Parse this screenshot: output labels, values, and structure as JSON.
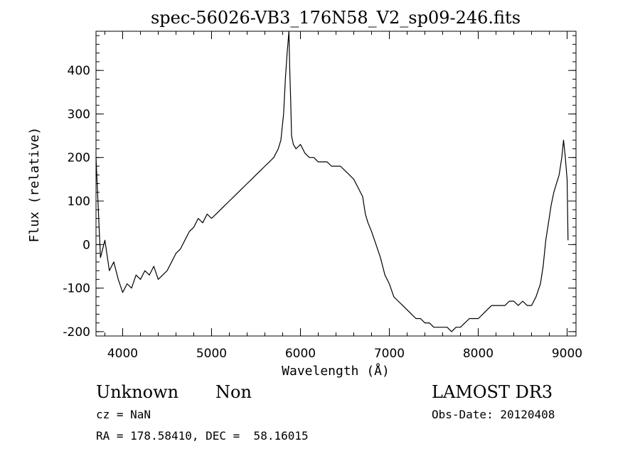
{
  "chart_data": {
    "type": "line",
    "title": "spec-56026-VB3_176N58_V2_sp09-246.fits",
    "xlabel": "Wavelength (Å)",
    "ylabel": "Flux (relative)",
    "xlim": [
      3700,
      9100
    ],
    "ylim": [
      -210,
      490
    ],
    "xticks": [
      4000,
      5000,
      6000,
      7000,
      8000,
      9000
    ],
    "yticks": [
      -200,
      -100,
      0,
      100,
      200,
      300,
      400
    ],
    "grid": false,
    "series": [
      {
        "x": [
          3700,
          3750,
          3800,
          3850,
          3900,
          3950,
          4000,
          4050,
          4100,
          4150,
          4200,
          4250,
          4300,
          4350,
          4400,
          4450,
          4500,
          4550,
          4600,
          4650,
          4700,
          4750,
          4800,
          4850,
          4900,
          4950,
          5000,
          5050,
          5100,
          5150,
          5200,
          5250,
          5300,
          5350,
          5400,
          5450,
          5500,
          5550,
          5600,
          5650,
          5700,
          5750,
          5780,
          5810,
          5830,
          5850,
          5870,
          5880,
          5890,
          5900,
          5920,
          5950,
          6000,
          6050,
          6100,
          6150,
          6200,
          6250,
          6300,
          6350,
          6400,
          6450,
          6500,
          6550,
          6600,
          6650,
          6700,
          6730,
          6760,
          6800,
          6850,
          6900,
          6950,
          7000,
          7050,
          7100,
          7150,
          7200,
          7250,
          7300,
          7350,
          7400,
          7450,
          7500,
          7550,
          7600,
          7650,
          7700,
          7750,
          7800,
          7850,
          7900,
          7950,
          8000,
          8050,
          8100,
          8150,
          8200,
          8250,
          8300,
          8350,
          8400,
          8450,
          8500,
          8550,
          8600,
          8650,
          8700,
          8730,
          8760,
          8790,
          8820,
          8850,
          8880,
          8910,
          8940,
          8960,
          8980,
          9000,
          9010
        ],
        "y": [
          200,
          -30,
          10,
          -60,
          -40,
          -80,
          -110,
          -90,
          -100,
          -70,
          -80,
          -60,
          -70,
          -50,
          -80,
          -70,
          -60,
          -40,
          -20,
          -10,
          10,
          30,
          40,
          60,
          50,
          70,
          60,
          70,
          80,
          90,
          100,
          110,
          120,
          130,
          140,
          150,
          160,
          170,
          180,
          190,
          200,
          220,
          240,
          300,
          380,
          440,
          490,
          400,
          330,
          250,
          230,
          220,
          230,
          210,
          200,
          200,
          190,
          190,
          190,
          180,
          180,
          180,
          170,
          160,
          150,
          130,
          110,
          70,
          50,
          30,
          0,
          -30,
          -70,
          -90,
          -120,
          -130,
          -140,
          -150,
          -160,
          -170,
          -170,
          -180,
          -180,
          -190,
          -190,
          -190,
          -190,
          -200,
          -190,
          -190,
          -180,
          -170,
          -170,
          -170,
          -160,
          -150,
          -140,
          -140,
          -140,
          -140,
          -130,
          -130,
          -140,
          -130,
          -140,
          -140,
          -120,
          -90,
          -50,
          10,
          50,
          90,
          120,
          140,
          160,
          200,
          240,
          200,
          150,
          10
        ]
      }
    ]
  },
  "annotations": {
    "object_class": "Unknown",
    "subclass": "Non",
    "survey": "LAMOST DR3",
    "redshift": "cz = NaN",
    "obs_date": "Obs-Date: 20120408",
    "coords": "RA = 178.58410, DEC =  58.16015"
  }
}
